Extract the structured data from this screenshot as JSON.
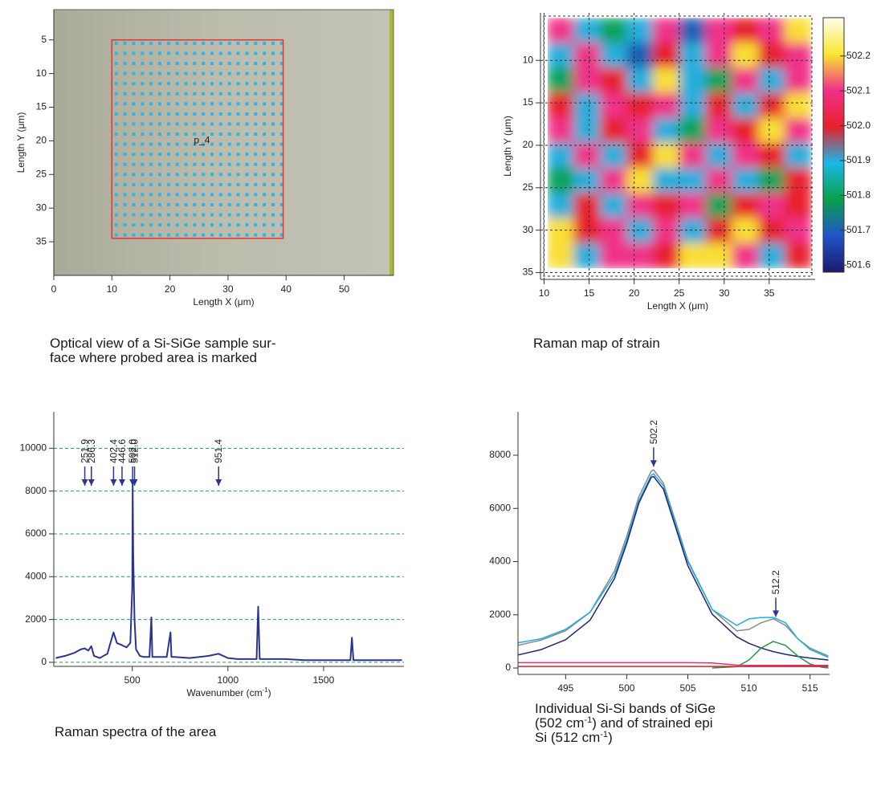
{
  "chart_data": [
    {
      "type": "image",
      "xlabel": "Length X (μm)",
      "ylabel": "Length Y (μm)",
      "xlim": [
        0,
        58.5
      ],
      "ylim": [
        0.5,
        40
      ],
      "y_inverted": true,
      "xticks": [
        0,
        10,
        20,
        30,
        40,
        50
      ],
      "yticks": [
        5,
        10,
        15,
        20,
        25,
        30,
        35
      ],
      "probe_x": [
        10.75,
        12.25,
        13.75,
        15.25,
        16.75,
        18.25,
        19.75,
        21.25,
        22.75,
        24.25,
        25.75,
        27.25,
        28.75,
        30.25,
        31.75,
        33.25,
        34.75,
        36.25,
        37.75,
        39.25
      ],
      "probe_y": [
        5.5,
        7,
        8.5,
        10,
        11.5,
        13,
        14.5,
        16,
        17.5,
        19,
        20.5,
        22,
        23.5,
        25,
        26.5,
        28,
        29.5,
        31,
        32.5,
        34
      ],
      "color": "#2fb4e8",
      "area_x": [
        10,
        39.5
      ],
      "area_y": [
        5,
        34.5
      ],
      "area_color": "#e8322c",
      "marker_label": "p_4",
      "marker_x": 25.5,
      "marker_y": 20,
      "caption": [
        [
          "Optical view of a Si-SiGe sample sur-"
        ],
        [
          "face where probed area is marked"
        ]
      ]
    },
    {
      "type": "heatmap",
      "xlabel": "Length X (μm)",
      "ylabel": "Length Y (μm)",
      "xlim": [
        9.6,
        40.1
      ],
      "ylim": [
        4.4,
        35.8
      ],
      "y_inverted": true,
      "xticks": [
        10,
        15,
        20,
        25,
        30,
        35
      ],
      "yticks": [
        10,
        15,
        20,
        25,
        30,
        35
      ],
      "grid": true,
      "extent_x": [
        10.4,
        39.7
      ],
      "extent_y": [
        5,
        34.5
      ],
      "z": [
        [
          502.1,
          501.9,
          501.8,
          501.9,
          502.1,
          501.7,
          502.1,
          502.0,
          502.1,
          502.2
        ],
        [
          501.9,
          502.1,
          501.9,
          501.7,
          502.0,
          501.9,
          502.1,
          502.2,
          502.0,
          502.1
        ],
        [
          501.8,
          502.1,
          502.0,
          501.9,
          502.2,
          501.9,
          501.8,
          502.1,
          501.9,
          502.1
        ],
        [
          502.0,
          501.9,
          502.1,
          502.0,
          502.1,
          501.9,
          502.0,
          501.9,
          502.0,
          502.2
        ],
        [
          502.1,
          501.9,
          502.0,
          502.1,
          501.9,
          501.8,
          502.1,
          502.0,
          502.2,
          502.1
        ],
        [
          501.9,
          502.1,
          501.9,
          502.0,
          502.2,
          502.1,
          501.9,
          502.1,
          502.0,
          501.9
        ],
        [
          501.8,
          501.9,
          502.1,
          502.2,
          501.9,
          501.9,
          502.1,
          501.9,
          501.8,
          502.0
        ],
        [
          501.9,
          502.0,
          501.9,
          502.1,
          502.0,
          502.1,
          501.8,
          502.0,
          502.1,
          502.0
        ],
        [
          502.2,
          502.0,
          502.1,
          501.9,
          502.1,
          501.9,
          502.0,
          502.2,
          502.0,
          502.1
        ],
        [
          502.2,
          501.9,
          502.1,
          502.1,
          502.0,
          502.2,
          502.2,
          502.1,
          501.9,
          502.0
        ]
      ],
      "colorbar_lim": [
        501.58,
        502.31
      ],
      "colorbar_ticks": [
        501.6,
        501.7,
        501.8,
        501.9,
        {
          "value": 502,
          "label": "502.0"
        },
        502.1,
        502.2
      ],
      "colormap": [
        "#1a1a6e",
        "#1f55c8",
        "#0aa04a",
        "#1ab8e8",
        "#e8202a",
        "#f0308a",
        "#f9e830",
        "#fffff0"
      ],
      "caption": [
        [
          "Raman map of strain"
        ]
      ]
    },
    {
      "type": "line",
      "xlabel": [
        "Wavenumber (cm",
        "-1",
        ")"
      ],
      "xlim": [
        90,
        1920
      ],
      "ylim": [
        -190,
        11700
      ],
      "xticks": [
        500,
        1000,
        1500
      ],
      "yticks": [
        0,
        2000,
        4000,
        6000,
        8000,
        10000
      ],
      "grid": true,
      "grid_color": "#1f9a6a",
      "x": [
        100,
        150,
        200,
        230,
        252,
        270,
        286,
        300,
        330,
        370,
        402,
        420,
        446,
        470,
        490,
        500,
        502,
        505,
        512,
        520,
        540,
        560,
        590,
        600,
        605,
        620,
        680,
        700,
        705,
        720,
        800,
        900,
        951,
        1000,
        1050,
        1150,
        1158,
        1166,
        1200,
        1300,
        1400,
        1500,
        1640,
        1648,
        1656,
        1700,
        1800,
        1910
      ],
      "values": [
        200,
        300,
        450,
        600,
        650,
        550,
        750,
        300,
        200,
        400,
        1400,
        900,
        800,
        700,
        900,
        3500,
        8300,
        5000,
        2000,
        600,
        300,
        250,
        250,
        2100,
        250,
        250,
        250,
        1400,
        250,
        250,
        200,
        300,
        400,
        200,
        150,
        150,
        2600,
        150,
        150,
        150,
        100,
        100,
        100,
        1150,
        100,
        100,
        100,
        100
      ],
      "color": "#2b3590",
      "peak_positions": [
        251.9,
        286.3,
        402.4,
        446.6,
        502,
        512,
        951.4
      ],
      "peak_labels": [
        "251.9",
        "286.3",
        "402.4",
        "446.6",
        "502.0",
        "512.0",
        "951.4"
      ],
      "peak_color": "#2b3590",
      "caption": [
        [
          "Raman spectra of the area"
        ]
      ]
    },
    {
      "type": "line",
      "xlim": [
        491.1,
        516.6
      ],
      "ylim": [
        -240,
        9630
      ],
      "xticks": [
        495,
        500,
        505,
        510,
        515
      ],
      "yticks": [
        0,
        2000,
        4000,
        6000,
        8000
      ],
      "x": [
        491.1,
        493,
        495,
        497,
        499,
        500,
        501,
        502,
        502.2,
        503,
        504,
        505,
        507,
        509,
        510,
        511,
        512,
        513,
        514,
        515,
        516,
        516.5
      ],
      "series": [
        {
          "color": "#8a8a8a",
          "values": [
            850,
            1050,
            1400,
            2100,
            3650,
            4950,
            6450,
            7400,
            7450,
            6950,
            5500,
            4050,
            2200,
            1400,
            1450,
            1700,
            1850,
            1600,
            1100,
            750,
            550,
            450
          ]
        },
        {
          "color": "#1ab0e0",
          "values": [
            950,
            1100,
            1450,
            2100,
            3500,
            4800,
            6300,
            7250,
            7300,
            6850,
            5400,
            4000,
            2200,
            1600,
            1850,
            1900,
            1900,
            1700,
            1100,
            700,
            500,
            400
          ]
        },
        {
          "color": "#22237a",
          "values": [
            490,
            692,
            1065,
            1800,
            3368,
            4681,
            6207,
            7168,
            7200,
            6722,
            5294,
            3848,
            2022,
            1173,
            928,
            750,
            617,
            516,
            437,
            375,
            325,
            300
          ]
        },
        {
          "color": "#1a9a40",
          "values": [
            null,
            null,
            null,
            null,
            null,
            null,
            null,
            null,
            null,
            null,
            null,
            null,
            0,
            50,
            300,
            750,
            1000,
            850,
            450,
            150,
            30,
            0
          ]
        },
        {
          "color": "#e0307a",
          "values": [
            200,
            200,
            200,
            200,
            200,
            200,
            200,
            200,
            200,
            200,
            200,
            200,
            190,
            110,
            100,
            100,
            100,
            100,
            100,
            100,
            100,
            100
          ]
        },
        {
          "color": "#e02020",
          "values": [
            60,
            60,
            60,
            60,
            60,
            60,
            60,
            60,
            60,
            60,
            60,
            60,
            60,
            60,
            60,
            60,
            60,
            60,
            60,
            60,
            60,
            60
          ]
        }
      ],
      "peak_positions": [
        502.2,
        512.2
      ],
      "peak_labels": [
        "502.2",
        "512.2"
      ],
      "peak_color": "#2b3590",
      "caption": [
        [
          "Individual Si-Si bands of SiGe"
        ],
        [
          "(502 cm",
          "-1",
          ") and of strained epi"
        ],
        [
          "Si (512 cm",
          "-1",
          ")"
        ]
      ]
    }
  ]
}
